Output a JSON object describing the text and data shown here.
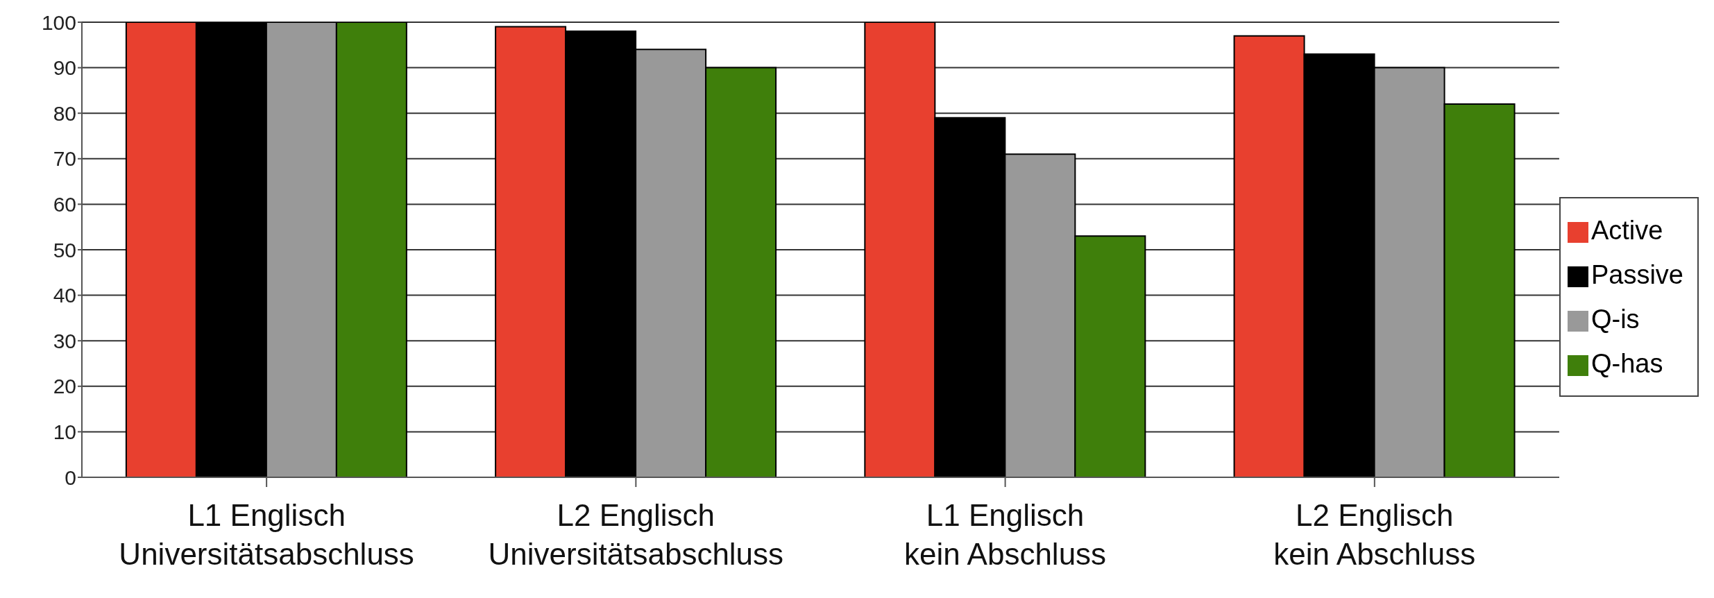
{
  "chart_data": {
    "type": "bar",
    "categories": [
      "L1 Englisch\nUniversitätsabschluss",
      "L2 Englisch\nUniversitätsabschluss",
      "L1 Englisch\nkein Abschluss",
      "L2 Englisch\nkein Abschluss"
    ],
    "series": [
      {
        "name": "Active",
        "color": "#e8402f",
        "values": [
          100,
          99,
          100,
          97
        ]
      },
      {
        "name": "Passive",
        "color": "#000000",
        "values": [
          100,
          98,
          79,
          93
        ]
      },
      {
        "name": "Q-is",
        "color": "#999999",
        "values": [
          100,
          94,
          71,
          90
        ]
      },
      {
        "name": "Q-has",
        "color": "#3f7f0b",
        "values": [
          100,
          90,
          53,
          82
        ]
      }
    ],
    "ylim": [
      0,
      100
    ],
    "yticks": [
      0,
      10,
      20,
      30,
      40,
      50,
      60,
      70,
      80,
      90,
      100
    ],
    "grid": "y",
    "legend": "right"
  }
}
